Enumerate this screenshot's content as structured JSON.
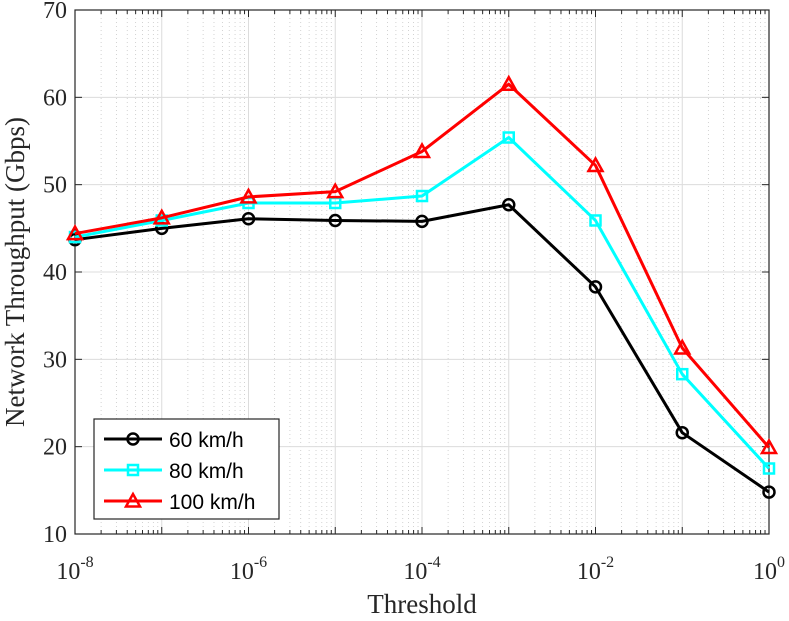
{
  "chart_data": {
    "type": "line",
    "title": "",
    "xlabel": "Threshold",
    "ylabel": "Network Throughput (Gbps)",
    "xscale": "log",
    "x": [
      1e-08,
      1e-07,
      1e-06,
      1e-05,
      0.0001,
      0.001,
      0.01,
      0.1,
      1
    ],
    "xlim_exp": [
      -8,
      0
    ],
    "ylim": [
      10,
      70
    ],
    "grid": true,
    "legend_position": "bottom-left",
    "x_ticks": [
      {
        "base": "10",
        "exp": "-8"
      },
      {
        "base": "10",
        "exp": "-6"
      },
      {
        "base": "10",
        "exp": "-4"
      },
      {
        "base": "10",
        "exp": "-2"
      },
      {
        "base": "10",
        "exp": "0"
      }
    ],
    "y_ticks": [
      "10",
      "20",
      "30",
      "40",
      "50",
      "60",
      "70"
    ],
    "series": [
      {
        "name": "60 km/h",
        "color": "#000000",
        "marker": "circle",
        "values": [
          43.7,
          45.0,
          46.1,
          45.9,
          45.8,
          47.7,
          38.3,
          21.6,
          14.8
        ]
      },
      {
        "name": "80 km/h",
        "color": "#00ffff",
        "marker": "square",
        "values": [
          44.0,
          45.9,
          47.9,
          47.9,
          48.7,
          55.4,
          45.9,
          28.3,
          17.5
        ]
      },
      {
        "name": "100 km/h",
        "color": "#ff0000",
        "marker": "triangle",
        "values": [
          44.4,
          46.2,
          48.6,
          49.2,
          53.8,
          61.5,
          52.2,
          31.3,
          19.9
        ]
      }
    ]
  }
}
